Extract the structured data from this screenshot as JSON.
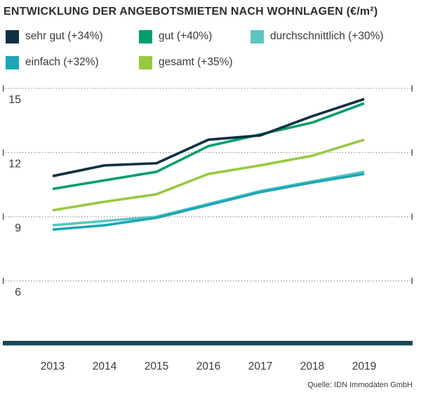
{
  "title": "ENTWICKLUNG DER ANGEBOTSMIETEN NACH WOHNLAGEN (€/m²)",
  "source": "Quelle: IDN Immodaten GmbH",
  "legend": {
    "items": [
      {
        "label": "sehr gut (+34%)",
        "color": "#0e3040"
      },
      {
        "label": "gut (+40%)",
        "color": "#009e6e"
      },
      {
        "label": "durchschnittlich (+30%)",
        "color": "#5cc5c0"
      },
      {
        "label": "einfach (+32%)",
        "color": "#1ba7b7"
      },
      {
        "label": "gesamt (+35%)",
        "color": "#97c93f"
      }
    ]
  },
  "chart_data": {
    "type": "line",
    "title": "ENTWICKLUNG DER ANGEBOTSMIETEN NACH WOHNLAGEN (€/m²)",
    "x": [
      2013,
      2014,
      2015,
      2016,
      2017,
      2018,
      2019
    ],
    "series": [
      {
        "name": "sehr gut (+34%)",
        "color": "#0e3040",
        "values": [
          10.9,
          11.4,
          11.5,
          12.6,
          12.8,
          13.7,
          14.5
        ]
      },
      {
        "name": "gut (+40%)",
        "color": "#009e6e",
        "values": [
          10.3,
          10.7,
          11.1,
          12.3,
          12.85,
          13.4,
          14.3
        ]
      },
      {
        "name": "durchschnittlich (+30%)",
        "color": "#5cc5c0",
        "values": [
          8.6,
          8.8,
          9.0,
          9.6,
          10.2,
          10.65,
          11.1
        ]
      },
      {
        "name": "einfach (+32%)",
        "color": "#1ba7b7",
        "values": [
          8.4,
          8.6,
          8.95,
          9.55,
          10.15,
          10.6,
          11.0
        ]
      },
      {
        "name": "gesamt (+35%)",
        "color": "#97c93f",
        "values": [
          9.3,
          9.7,
          10.05,
          11.0,
          11.4,
          11.85,
          12.6
        ]
      }
    ],
    "ylabel": "€/m²",
    "xlabel": "",
    "yticks": [
      15,
      12,
      9,
      6
    ],
    "ylim": [
      3.2,
      15.5
    ],
    "grid": "horizontal-dotted",
    "legend_position": "top",
    "grid_color": "#8c8c8c",
    "tick_color": "#555555",
    "text_color": "#3a3a3a",
    "baseline_color": "#15465a"
  }
}
